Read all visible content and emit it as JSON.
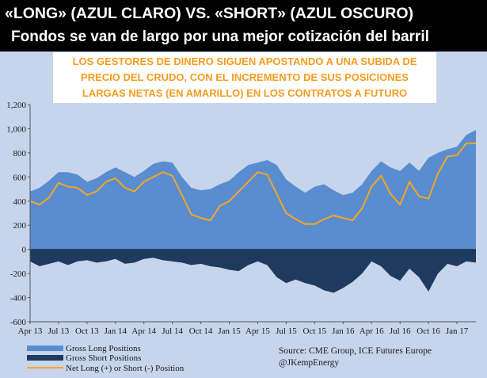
{
  "header": {
    "title": "«LONG» (AZUL CLARO) VS. «SHORT» (AZUL OSCURO)",
    "subtitle": "Fondos se van de largo por una mejor cotización del barril"
  },
  "callout": {
    "lines": [
      "LOS GESTORES DE DINERO SIGUEN APOSTANDO A UNA SUBIDA DE",
      "PRECIO DEL CRUDO, CON EL INCREMENTO DE SUS POSICIONES",
      "LARGAS NETAS (EN AMARILLO) EN LOS  CONTRATOS A FUTURO"
    ]
  },
  "source": {
    "line1": "Source:  CME Group, ICE Futures Europe",
    "line2": "@JKempEnergy"
  },
  "colors": {
    "panel": "#c7d5ec",
    "long": "#5a8dd0",
    "short": "#1f3a5f",
    "net": "#f5a623",
    "callout_text": "#f39c1f"
  },
  "chart_data": {
    "type": "area",
    "title": "",
    "xlabel": "",
    "ylabel": "",
    "ylim": [
      -600,
      1200
    ],
    "yticks": [
      -600,
      -400,
      -200,
      0,
      200,
      400,
      600,
      800,
      1000,
      1200
    ],
    "ytick_labels": [
      "-600",
      "-400",
      "-200",
      "0",
      "200",
      "400",
      "600",
      "800",
      "1,000",
      "1,200"
    ],
    "xlim": [
      0,
      47
    ],
    "x_tick_labels": [
      "Apr 13",
      "Jul 13",
      "Oct 13",
      "Jan 14",
      "Apr 14",
      "Jul 14",
      "Oct 14",
      "Jan 15",
      "Apr 15",
      "Jul 15",
      "Oct 15",
      "Jan 16",
      "Apr 16",
      "Jul 16",
      "Oct 16",
      "Jan 17"
    ],
    "x_tick_positions": [
      0,
      3,
      6,
      9,
      12,
      15,
      18,
      21,
      24,
      27,
      30,
      33,
      36,
      39,
      42,
      45
    ],
    "grid": false,
    "legend_position": "bottom-left",
    "x": [
      0,
      1,
      2,
      3,
      4,
      5,
      6,
      7,
      8,
      9,
      10,
      11,
      12,
      13,
      14,
      15,
      16,
      17,
      18,
      19,
      20,
      21,
      22,
      23,
      24,
      25,
      26,
      27,
      28,
      29,
      30,
      31,
      32,
      33,
      34,
      35,
      36,
      37,
      38,
      39,
      40,
      41,
      42,
      43,
      44,
      45,
      46,
      47
    ],
    "series": [
      {
        "name": "Gross Long Positions",
        "values": [
          480,
          510,
          570,
          640,
          640,
          620,
          560,
          590,
          640,
          680,
          640,
          600,
          650,
          710,
          730,
          720,
          600,
          510,
          490,
          500,
          540,
          570,
          640,
          700,
          720,
          740,
          700,
          580,
          520,
          470,
          520,
          540,
          490,
          450,
          470,
          540,
          650,
          730,
          680,
          650,
          720,
          650,
          760,
          800,
          830,
          850,
          950,
          990
        ]
      },
      {
        "name": "Gross Short Positions",
        "values": [
          -100,
          -140,
          -120,
          -100,
          -130,
          -100,
          -90,
          -110,
          -100,
          -80,
          -120,
          -110,
          -80,
          -70,
          -90,
          -100,
          -110,
          -130,
          -120,
          -140,
          -150,
          -170,
          -180,
          -130,
          -100,
          -130,
          -230,
          -280,
          -250,
          -280,
          -300,
          -340,
          -360,
          -320,
          -270,
          -200,
          -100,
          -140,
          -220,
          -260,
          -160,
          -230,
          -350,
          -200,
          -120,
          -140,
          -100,
          -110
        ]
      },
      {
        "name": "Net Long (+) or Short (-) Position",
        "values": [
          400,
          370,
          430,
          550,
          520,
          510,
          450,
          480,
          560,
          590,
          510,
          480,
          560,
          600,
          640,
          610,
          450,
          290,
          260,
          240,
          360,
          400,
          480,
          560,
          640,
          620,
          460,
          300,
          250,
          210,
          210,
          250,
          280,
          260,
          240,
          340,
          520,
          610,
          460,
          370,
          560,
          440,
          420,
          630,
          770,
          780,
          880,
          880
        ]
      }
    ]
  }
}
